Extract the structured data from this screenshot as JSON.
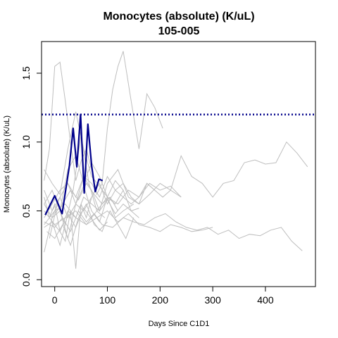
{
  "chart_data": {
    "type": "line",
    "title": "Monocytes (absolute) (K/uL)",
    "subtitle": "105-005",
    "xlabel": "Days Since C1D1",
    "ylabel": "Monocytes (absolute) (K/uL)",
    "xlim": [
      -25,
      495
    ],
    "ylim": [
      -0.05,
      1.73
    ],
    "x_ticks": [
      0,
      100,
      200,
      300,
      400
    ],
    "y_ticks": [
      0.0,
      0.5,
      1.0,
      1.5
    ],
    "y_tick_labels": [
      "0.0",
      "0.5",
      "1.0",
      "1.5"
    ],
    "grid": false,
    "reference_lines": [
      {
        "name": "upper-limit-normal",
        "y": 1.2,
        "color": "#00008b",
        "style": "dotted"
      }
    ],
    "highlight_series": {
      "name": "105-005",
      "color": "#00008b",
      "x": [
        -18,
        0,
        14,
        28,
        35,
        42,
        49,
        56,
        63,
        70,
        77,
        84,
        91
      ],
      "y": [
        0.47,
        0.61,
        0.48,
        0.83,
        1.1,
        0.82,
        1.2,
        0.63,
        1.13,
        0.83,
        0.64,
        0.73,
        0.72
      ]
    },
    "background_series_color": "#bebebe",
    "background_series": [
      {
        "x": [
          -20,
          -10,
          0,
          10,
          20,
          30,
          40,
          50,
          60,
          70,
          80,
          90,
          100,
          110,
          120,
          130,
          145,
          160,
          175,
          190,
          205
        ],
        "y": [
          0.72,
          0.95,
          1.55,
          1.58,
          1.3,
          1.0,
          0.72,
          0.86,
          0.95,
          0.8,
          0.62,
          0.7,
          1.1,
          1.38,
          1.55,
          1.66,
          1.3,
          0.95,
          1.35,
          1.25,
          1.1
        ]
      },
      {
        "x": [
          -20,
          -5,
          10,
          25,
          40,
          55,
          70,
          85,
          100,
          120,
          140,
          160,
          180,
          200,
          220,
          240,
          260,
          280,
          300,
          320,
          340,
          360,
          380,
          400,
          420,
          440,
          460,
          480
        ],
        "y": [
          0.55,
          0.45,
          0.6,
          0.7,
          0.55,
          0.75,
          0.65,
          0.5,
          0.7,
          0.8,
          0.6,
          0.55,
          0.62,
          0.7,
          0.65,
          0.9,
          0.75,
          0.7,
          0.6,
          0.7,
          0.72,
          0.85,
          0.87,
          0.84,
          0.85,
          1.0,
          0.92,
          0.82
        ]
      },
      {
        "x": [
          -20,
          0,
          15,
          30,
          45,
          60,
          75,
          90,
          110,
          130,
          150,
          170,
          190,
          210,
          230,
          250,
          270,
          290,
          310,
          330,
          350,
          370,
          390,
          410,
          430,
          450,
          470
        ],
        "y": [
          0.42,
          0.38,
          0.45,
          0.35,
          0.5,
          0.42,
          0.48,
          0.4,
          0.38,
          0.45,
          0.42,
          0.4,
          0.45,
          0.48,
          0.42,
          0.38,
          0.36,
          0.38,
          0.33,
          0.36,
          0.3,
          0.33,
          0.32,
          0.36,
          0.38,
          0.28,
          0.21
        ]
      },
      {
        "x": [
          -20,
          -5,
          10,
          25,
          40,
          55,
          70,
          85,
          100,
          115,
          130
        ],
        "y": [
          0.8,
          0.7,
          0.62,
          0.95,
          1.22,
          0.95,
          0.75,
          0.68,
          0.6,
          0.72,
          0.65
        ]
      },
      {
        "x": [
          -20,
          -5,
          10,
          25,
          40,
          55,
          70,
          85,
          100,
          115,
          130,
          150
        ],
        "y": [
          0.2,
          0.45,
          0.5,
          0.3,
          0.55,
          0.68,
          0.5,
          0.42,
          0.6,
          0.45,
          0.5,
          0.55
        ]
      },
      {
        "x": [
          -20,
          -10,
          0,
          10,
          20,
          30,
          40,
          50,
          60,
          70
        ],
        "y": [
          0.6,
          0.45,
          0.55,
          0.35,
          0.28,
          0.5,
          0.08,
          0.55,
          0.45,
          0.6
        ]
      },
      {
        "x": [
          -20,
          0,
          20,
          40,
          60,
          80,
          100,
          120,
          140,
          160,
          180,
          200,
          220,
          240
        ],
        "y": [
          0.4,
          0.5,
          0.55,
          0.45,
          0.4,
          0.5,
          0.6,
          0.55,
          0.65,
          0.6,
          0.7,
          0.65,
          0.68,
          0.6
        ]
      },
      {
        "x": [
          -20,
          -5,
          10,
          25,
          40,
          55,
          70,
          85,
          100,
          115,
          130,
          145,
          160,
          175,
          190
        ],
        "y": [
          0.45,
          0.55,
          0.65,
          0.7,
          0.6,
          0.75,
          0.7,
          0.6,
          0.75,
          0.65,
          0.7,
          0.6,
          0.55,
          0.7,
          0.65
        ]
      },
      {
        "x": [
          -15,
          0,
          15,
          30,
          45,
          60,
          75,
          90,
          105,
          120,
          135,
          150
        ],
        "y": [
          0.35,
          0.3,
          0.4,
          0.25,
          0.45,
          0.55,
          0.4,
          0.35,
          0.5,
          0.4,
          0.3,
          0.45
        ]
      },
      {
        "x": [
          -20,
          -5,
          10,
          25,
          40,
          55,
          70,
          85,
          100,
          115,
          130,
          145,
          160
        ],
        "y": [
          0.55,
          0.65,
          0.5,
          0.8,
          0.9,
          0.7,
          0.85,
          0.75,
          0.6,
          0.55,
          0.65,
          0.5,
          0.45
        ]
      },
      {
        "x": [
          -20,
          0,
          20,
          40,
          60,
          80,
          100,
          120,
          140,
          160,
          180,
          200,
          220,
          240,
          260,
          280,
          300
        ],
        "y": [
          0.5,
          0.4,
          0.45,
          0.5,
          0.4,
          0.45,
          0.5,
          0.42,
          0.48,
          0.4,
          0.38,
          0.35,
          0.4,
          0.38,
          0.35,
          0.36,
          0.38
        ]
      },
      {
        "x": [
          -10,
          5,
          20,
          35,
          50,
          65,
          80,
          95
        ],
        "y": [
          0.3,
          0.55,
          0.4,
          0.65,
          1.05,
          0.7,
          0.5,
          0.45
        ]
      },
      {
        "x": [
          -20,
          -5,
          10,
          25,
          40,
          55,
          70,
          85,
          100,
          115,
          130,
          145,
          160,
          175,
          190,
          205,
          220,
          240
        ],
        "y": [
          0.65,
          0.5,
          0.6,
          0.45,
          0.55,
          0.5,
          0.6,
          0.7,
          0.55,
          0.65,
          0.6,
          0.55,
          0.6,
          0.7,
          0.65,
          0.6,
          0.65,
          0.6
        ]
      },
      {
        "x": [
          -5,
          10,
          25,
          40,
          55,
          70,
          85,
          100
        ],
        "y": [
          0.42,
          0.25,
          0.48,
          0.38,
          0.52,
          0.44,
          0.36,
          0.42
        ]
      },
      {
        "x": [
          -20,
          -5,
          10,
          25,
          40,
          55,
          70,
          85,
          100,
          115,
          130,
          145,
          160
        ],
        "y": [
          0.38,
          0.42,
          0.35,
          0.5,
          0.45,
          0.6,
          0.55,
          0.5,
          0.58,
          0.48,
          0.55,
          0.5,
          0.52
        ]
      },
      {
        "x": [
          0,
          15,
          30,
          45,
          60,
          75,
          90,
          105,
          120
        ],
        "y": [
          0.48,
          0.55,
          0.65,
          0.58,
          0.7,
          0.62,
          0.55,
          0.6,
          0.5
        ]
      }
    ]
  }
}
